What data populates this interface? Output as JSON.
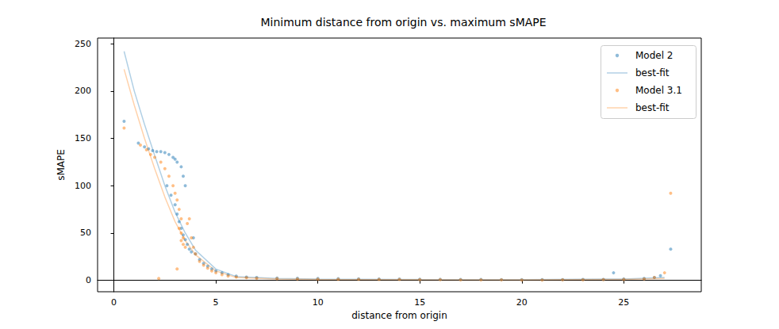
{
  "chart_data": {
    "type": "scatter",
    "title": "Minimum distance from origin vs. maximum sMAPE",
    "x_label": "distance from origin",
    "y_label": "sMAPE",
    "xlim": [
      -0.8,
      28.8
    ],
    "ylim": [
      -12,
      256
    ],
    "xticks": [
      0,
      5,
      10,
      15,
      20,
      25
    ],
    "yticks": [
      0,
      50,
      100,
      150,
      200,
      250
    ],
    "grid": false,
    "legend": "upper right",
    "series": [
      {
        "name": "Model 2",
        "type": "scatter",
        "color": "#1f77b4",
        "x": [
          0.5,
          1.2,
          1.5,
          1.7,
          1.9,
          2.1,
          2.3,
          2.5,
          2.7,
          2.9,
          3.0,
          3.1,
          3.3,
          3.4,
          3.5,
          2.6,
          2.8,
          3.0,
          3.1,
          3.2,
          3.3,
          3.4,
          3.5,
          3.6,
          3.7,
          3.8,
          3.9,
          4.0,
          4.2,
          4.4,
          4.6,
          4.8,
          5.0,
          5.3,
          5.6,
          6.0,
          6.5,
          7,
          8,
          9,
          10,
          11,
          12,
          13,
          14,
          15,
          16,
          17,
          18,
          19,
          20,
          21,
          22,
          23,
          24,
          24.5,
          25,
          26,
          26.5,
          26.8,
          27.3
        ],
        "values": [
          168,
          145,
          141,
          139,
          137,
          136,
          136,
          135,
          133,
          130,
          128,
          125,
          120,
          110,
          100,
          100,
          90,
          80,
          70,
          62,
          55,
          48,
          43,
          38,
          33,
          30,
          45,
          28,
          22,
          18,
          15,
          12,
          10,
          8,
          6,
          4.5,
          3.5,
          3,
          2.5,
          2.2,
          2,
          1.8,
          1.6,
          1.5,
          1.4,
          1.2,
          1.1,
          1,
          0.9,
          0.8,
          0.7,
          0.7,
          0.8,
          0.9,
          1,
          8,
          1.5,
          2,
          3,
          5,
          33
        ]
      },
      {
        "name": "best-fit",
        "type": "line",
        "color": "#1f77b4",
        "x": [
          0.5,
          1,
          1.5,
          2,
          2.5,
          3,
          3.5,
          4,
          5,
          6,
          8,
          10,
          15,
          20,
          25,
          27
        ],
        "values": [
          242,
          200,
          165,
          132,
          100,
          72,
          50,
          32,
          12,
          4,
          2,
          1.5,
          1,
          0.8,
          1.5,
          3
        ]
      },
      {
        "name": "Model 3.1",
        "type": "scatter",
        "color": "#ff7f0e",
        "x": [
          0.5,
          1.3,
          1.6,
          1.8,
          2.0,
          2.2,
          2.3,
          2.5,
          2.7,
          2.9,
          3.0,
          3.1,
          3.2,
          3.3,
          3.2,
          3.3,
          3.4,
          3.3,
          3.4,
          3.5,
          3.1,
          3.6,
          3.7,
          3.8,
          3.9,
          4.0,
          4.2,
          4.4,
          4.6,
          4.8,
          5,
          5.3,
          5.6,
          6,
          6.5,
          7,
          8,
          9,
          10,
          11,
          12,
          13,
          14,
          15,
          16,
          17,
          18,
          19,
          20,
          21,
          22,
          23,
          24,
          25,
          26,
          26.5,
          27,
          27.3
        ],
        "values": [
          161,
          143,
          138,
          133,
          130,
          2,
          125,
          118,
          110,
          100,
          92,
          85,
          75,
          65,
          55,
          50,
          45,
          42,
          38,
          35,
          12,
          60,
          65,
          45,
          35,
          28,
          20,
          16,
          13,
          10,
          8,
          6,
          4.5,
          3.5,
          2.8,
          2.3,
          1.8,
          1.5,
          1.3,
          1.2,
          1.1,
          1,
          0.9,
          0.8,
          0.7,
          0.6,
          0.5,
          0.5,
          0.4,
          0.4,
          0.5,
          0.6,
          0.8,
          1,
          1.5,
          3,
          8,
          92
        ]
      },
      {
        "name": "best-fit",
        "type": "line",
        "color": "#ff7f0e",
        "x": [
          0.5,
          1,
          1.5,
          2,
          2.5,
          3,
          3.5,
          4,
          5,
          6,
          8,
          10,
          15,
          20,
          25,
          27
        ],
        "values": [
          223,
          185,
          150,
          118,
          88,
          62,
          42,
          27,
          10,
          3,
          1.5,
          1,
          0.7,
          0.5,
          1,
          2
        ]
      }
    ]
  }
}
